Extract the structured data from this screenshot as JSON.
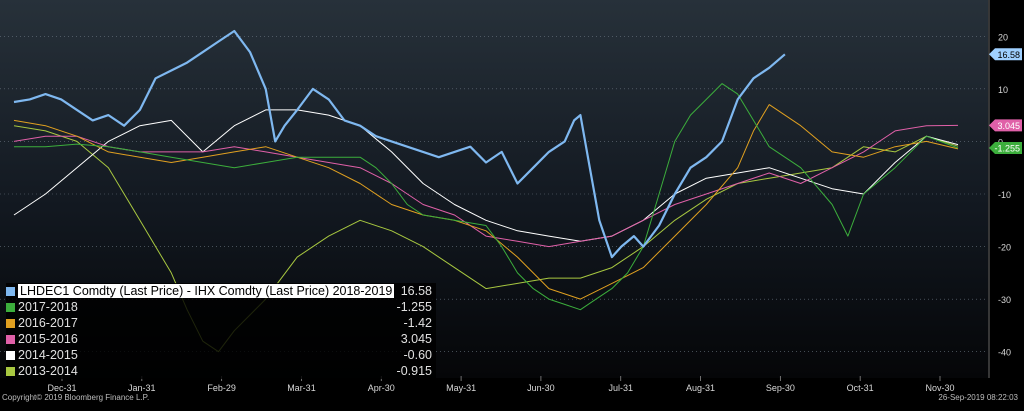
{
  "chart_data": {
    "type": "line",
    "title": "",
    "xlabel": "",
    "ylabel": "",
    "ylim": [
      -45,
      25
    ],
    "y_ticks": [
      20,
      10,
      0,
      -10,
      -20,
      -30,
      -40
    ],
    "x_tick_labels": [
      "Dec-31",
      "Jan-31",
      "Feb-29",
      "Mar-31",
      "Apr-30",
      "May-31",
      "Jun-30",
      "Jul-31",
      "Aug-31",
      "Sep-30",
      "Oct-31",
      "Nov-30"
    ],
    "grid": "horizontal dotted",
    "legend_position": "bottom-left",
    "series": [
      {
        "name": "LHDEC1 Comdty (Last Price) - IHX Comdty (Last Price) 2018-2019",
        "last_value_label": "16.58",
        "value": 16.58,
        "color": "#7fb8f0",
        "points": [
          [
            0,
            7.5
          ],
          [
            0.5,
            8
          ],
          [
            1,
            9
          ],
          [
            1.5,
            8
          ],
          [
            2,
            6
          ],
          [
            2.5,
            4
          ],
          [
            3,
            5
          ],
          [
            3.5,
            3
          ],
          [
            4,
            6
          ],
          [
            4.5,
            12
          ],
          [
            5,
            13.5
          ],
          [
            5.5,
            15
          ],
          [
            6,
            17
          ],
          [
            6.5,
            19
          ],
          [
            7,
            21
          ],
          [
            7.5,
            17
          ],
          [
            8,
            10
          ],
          [
            8.3,
            0
          ],
          [
            8.6,
            3
          ],
          [
            9,
            6
          ],
          [
            9.5,
            10
          ],
          [
            10,
            8
          ],
          [
            10.5,
            4
          ],
          [
            11,
            3
          ],
          [
            11.5,
            1
          ],
          [
            12,
            0
          ],
          [
            12.5,
            -1
          ],
          [
            13,
            -2
          ],
          [
            13.5,
            -3
          ],
          [
            14,
            -2
          ],
          [
            14.5,
            -1
          ],
          [
            15,
            -4
          ],
          [
            15.5,
            -2
          ],
          [
            16,
            -8
          ],
          [
            16.5,
            -5
          ],
          [
            17,
            -2
          ],
          [
            17.5,
            0
          ],
          [
            17.8,
            4
          ],
          [
            18,
            5
          ],
          [
            18.3,
            -5
          ],
          [
            18.6,
            -15
          ],
          [
            19,
            -22
          ],
          [
            19.3,
            -20
          ],
          [
            19.7,
            -18
          ],
          [
            20,
            -20
          ],
          [
            20.5,
            -16
          ],
          [
            21,
            -10
          ],
          [
            21.5,
            -5
          ],
          [
            22,
            -3
          ],
          [
            22.5,
            0
          ],
          [
            23,
            8
          ],
          [
            23.5,
            12
          ],
          [
            24,
            14
          ],
          [
            24.5,
            16.58
          ]
        ]
      },
      {
        "name": "2017-2018",
        "last_value_label": "-1.255",
        "value": -1.255,
        "color": "#3cae3c",
        "points": [
          [
            0,
            -1
          ],
          [
            1,
            -1
          ],
          [
            2,
            -0.5
          ],
          [
            3,
            -1
          ],
          [
            4,
            -2
          ],
          [
            5,
            -3
          ],
          [
            6,
            -4
          ],
          [
            7,
            -5
          ],
          [
            8,
            -4
          ],
          [
            9,
            -3
          ],
          [
            10,
            -3
          ],
          [
            11,
            -3
          ],
          [
            11.5,
            -5
          ],
          [
            12,
            -8
          ],
          [
            12.5,
            -12
          ],
          [
            13,
            -14
          ],
          [
            14,
            -15
          ],
          [
            15,
            -16
          ],
          [
            15.5,
            -20
          ],
          [
            16,
            -25
          ],
          [
            16.5,
            -28
          ],
          [
            17,
            -30
          ],
          [
            17.5,
            -31
          ],
          [
            18,
            -32
          ],
          [
            18.5,
            -30
          ],
          [
            19,
            -28
          ],
          [
            19.5,
            -25
          ],
          [
            20,
            -20
          ],
          [
            20.5,
            -10
          ],
          [
            21,
            0
          ],
          [
            21.5,
            5
          ],
          [
            22,
            8
          ],
          [
            22.5,
            11
          ],
          [
            23,
            9
          ],
          [
            23.5,
            4
          ],
          [
            24,
            -1
          ],
          [
            25,
            -5
          ],
          [
            26,
            -12
          ],
          [
            26.5,
            -18
          ],
          [
            27,
            -10
          ],
          [
            28,
            -5
          ],
          [
            29,
            1
          ],
          [
            30,
            -1.255
          ]
        ]
      },
      {
        "name": "2016-2017",
        "last_value_label": "-1.42",
        "value": -1.42,
        "color": "#e0a020",
        "points": [
          [
            0,
            4
          ],
          [
            1,
            3
          ],
          [
            2,
            1
          ],
          [
            3,
            -2
          ],
          [
            4,
            -3
          ],
          [
            5,
            -4
          ],
          [
            6,
            -3
          ],
          [
            7,
            -2
          ],
          [
            8,
            -1
          ],
          [
            9,
            -3
          ],
          [
            10,
            -5
          ],
          [
            11,
            -8
          ],
          [
            12,
            -12
          ],
          [
            13,
            -14
          ],
          [
            14,
            -15
          ],
          [
            15,
            -17
          ],
          [
            16,
            -22
          ],
          [
            17,
            -28
          ],
          [
            18,
            -30
          ],
          [
            19,
            -27
          ],
          [
            20,
            -24
          ],
          [
            21,
            -18
          ],
          [
            22,
            -12
          ],
          [
            23,
            -5
          ],
          [
            23.5,
            2
          ],
          [
            24,
            7
          ],
          [
            25,
            3
          ],
          [
            26,
            -2
          ],
          [
            27,
            -3
          ],
          [
            28,
            -1
          ],
          [
            29,
            0
          ],
          [
            30,
            -1.42
          ]
        ]
      },
      {
        "name": "2015-2016",
        "last_value_label": "3.045",
        "value": 3.045,
        "color": "#e060a8",
        "points": [
          [
            0,
            0
          ],
          [
            1,
            1
          ],
          [
            2,
            1
          ],
          [
            3,
            -1
          ],
          [
            4,
            -2
          ],
          [
            5,
            -2
          ],
          [
            6,
            -2
          ],
          [
            7,
            -1
          ],
          [
            8,
            -2
          ],
          [
            9,
            -3
          ],
          [
            10,
            -4
          ],
          [
            11,
            -5
          ],
          [
            12,
            -8
          ],
          [
            13,
            -12
          ],
          [
            14,
            -14
          ],
          [
            15,
            -18
          ],
          [
            16,
            -19
          ],
          [
            17,
            -20
          ],
          [
            18,
            -19
          ],
          [
            19,
            -18
          ],
          [
            20,
            -15
          ],
          [
            21,
            -12
          ],
          [
            22,
            -10
          ],
          [
            23,
            -8
          ],
          [
            24,
            -6
          ],
          [
            25,
            -8
          ],
          [
            26,
            -5
          ],
          [
            27,
            -2
          ],
          [
            28,
            2
          ],
          [
            29,
            3
          ],
          [
            30,
            3.045
          ]
        ]
      },
      {
        "name": "2014-2015",
        "last_value_label": "-0.60",
        "value": -0.6,
        "color": "#ffffff",
        "points": [
          [
            0,
            -14
          ],
          [
            1,
            -10
          ],
          [
            2,
            -5
          ],
          [
            3,
            0
          ],
          [
            4,
            3
          ],
          [
            5,
            4
          ],
          [
            6,
            -2
          ],
          [
            7,
            3
          ],
          [
            8,
            6
          ],
          [
            9,
            6
          ],
          [
            10,
            5
          ],
          [
            11,
            3
          ],
          [
            12,
            -2
          ],
          [
            13,
            -8
          ],
          [
            14,
            -12
          ],
          [
            15,
            -15
          ],
          [
            16,
            -17
          ],
          [
            17,
            -18
          ],
          [
            18,
            -19
          ],
          [
            19,
            -18
          ],
          [
            20,
            -15
          ],
          [
            21,
            -10
          ],
          [
            22,
            -7
          ],
          [
            23,
            -6
          ],
          [
            24,
            -5
          ],
          [
            25,
            -7
          ],
          [
            26,
            -9
          ],
          [
            27,
            -10
          ],
          [
            28,
            -4
          ],
          [
            29,
            1
          ],
          [
            30,
            -0.6
          ]
        ]
      },
      {
        "name": "2013-2014",
        "last_value_label": "-0.915",
        "value": -0.915,
        "color": "#a8c840",
        "points": [
          [
            0,
            3
          ],
          [
            1,
            2
          ],
          [
            2,
            0
          ],
          [
            3,
            -5
          ],
          [
            4,
            -15
          ],
          [
            5,
            -25
          ],
          [
            5.5,
            -32
          ],
          [
            6,
            -38
          ],
          [
            6.5,
            -40
          ],
          [
            7,
            -36
          ],
          [
            8,
            -30
          ],
          [
            9,
            -22
          ],
          [
            10,
            -18
          ],
          [
            11,
            -15
          ],
          [
            12,
            -17
          ],
          [
            13,
            -20
          ],
          [
            14,
            -24
          ],
          [
            15,
            -28
          ],
          [
            16,
            -27
          ],
          [
            17,
            -26
          ],
          [
            18,
            -26
          ],
          [
            19,
            -24
          ],
          [
            20,
            -20
          ],
          [
            21,
            -15
          ],
          [
            22,
            -11
          ],
          [
            23,
            -8
          ],
          [
            24,
            -7
          ],
          [
            25,
            -6
          ],
          [
            26,
            -5
          ],
          [
            27,
            -1
          ],
          [
            28,
            -2
          ],
          [
            29,
            1
          ],
          [
            30,
            -0.915
          ]
        ]
      }
    ]
  },
  "footer": {
    "copyright": "Copyright© 2019 Bloomberg Finance L.P.",
    "timestamp": "26-Sep-2019 08:22:03"
  }
}
